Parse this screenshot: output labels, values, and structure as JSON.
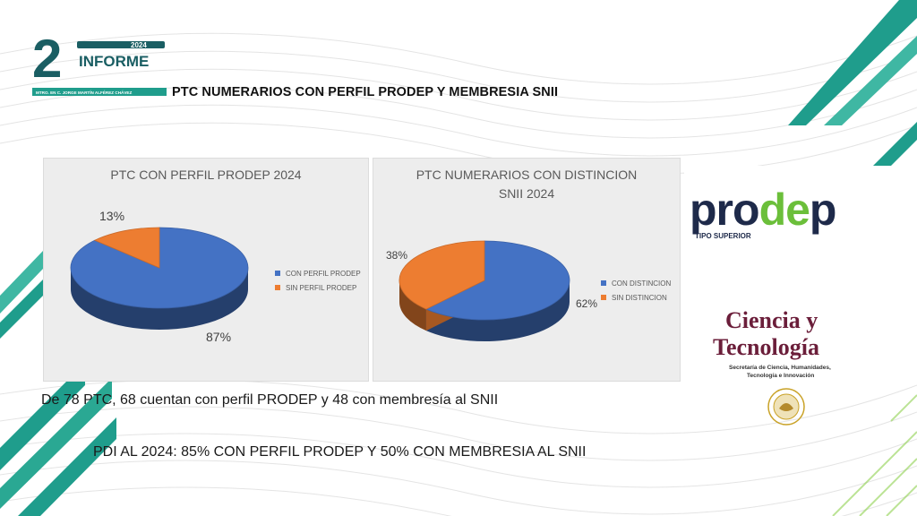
{
  "header": {
    "logo_number": "2",
    "logo_year": "2024",
    "logo_word": "INFORME",
    "logo_subtitle": "MTRO. EN C. JORGE MARTÍN ALFÉREZ CHÁVEZ",
    "title": "PTC NUMERARIOS CON PERFIL PRODEP Y MEMBRESIA SNII"
  },
  "colors": {
    "blue": "#4472c4",
    "orange": "#ed7d31",
    "teal": "#1f9d8c",
    "dark_teal": "#1a5e63",
    "prodep_green": "#6bbf3a",
    "prodep_navy": "#1e2a4a",
    "cyt_maroon": "#6b1e3a"
  },
  "chart_data": [
    {
      "type": "pie",
      "title": "PTC CON PERFIL PRODEP 2024",
      "categories": [
        "CON PERFIL PRODEP",
        "SIN PERFIL PRODEP"
      ],
      "values": [
        87,
        13
      ],
      "labels": [
        "87%",
        "13%"
      ],
      "legend_position": "right"
    },
    {
      "type": "pie",
      "title": "PTC NUMERARIOS CON DISTINCION SNII 2024",
      "title_lines": [
        "PTC NUMERARIOS CON DISTINCION",
        "SNII 2024"
      ],
      "categories": [
        "CON DISTINCION",
        "SIN DISTINCION"
      ],
      "values": [
        62,
        38
      ],
      "labels": [
        "62%",
        "38%"
      ],
      "legend_position": "right"
    }
  ],
  "body": {
    "line1": "De 78 PTC, 68 cuentan con perfil PRODEP y 48 con membresía al SNII",
    "line2": "PDI AL 2024: 85% CON PERFIL PRODEP Y 50% CON MEMBRESIA AL SNII"
  },
  "logos": {
    "prodep_word": "prodep",
    "prodep_tag": "TIPO SUPERIOR",
    "cyt_line1": "Ciencia y",
    "cyt_line2": "Tecnología",
    "cyt_sub1": "Secretaría de Ciencia, Humanidades,",
    "cyt_sub2": "Tecnología e Innovación"
  }
}
